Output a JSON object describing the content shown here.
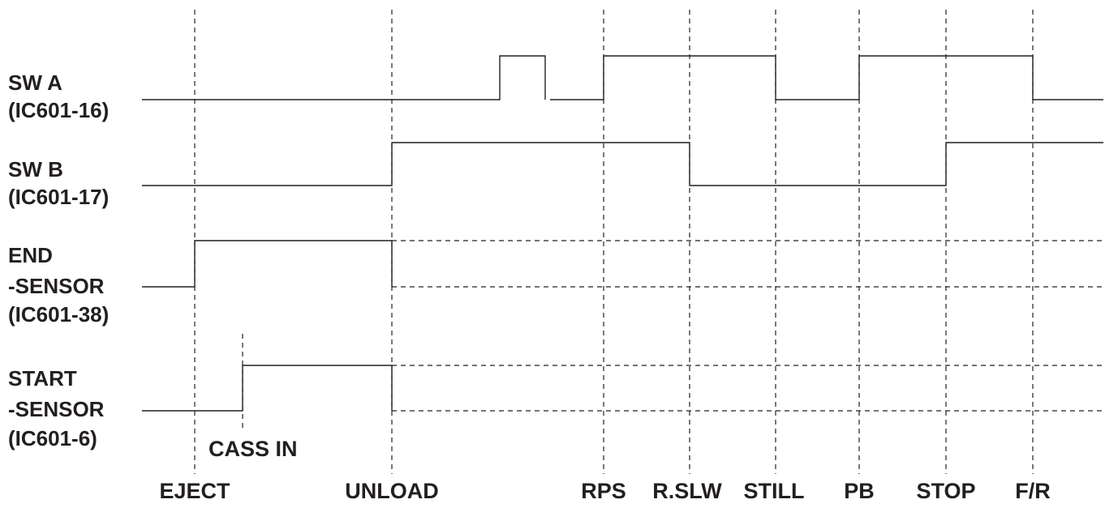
{
  "signals": [
    {
      "id": "sw-a",
      "label_lines": [
        "SW A",
        "(IC601-16)"
      ]
    },
    {
      "id": "sw-b",
      "label_lines": [
        "SW B",
        "(IC601-17)"
      ]
    },
    {
      "id": "end-sensor",
      "label_lines": [
        "END",
        "-SENSOR",
        "(IC601-38)"
      ]
    },
    {
      "id": "start-sensor",
      "label_lines": [
        "START",
        "-SENSOR",
        "(IC601-6)"
      ]
    }
  ],
  "modes": [
    "EJECT",
    "UNLOAD",
    "RPS",
    "R.SLW",
    "STILL",
    "PB",
    "STOP",
    "F/R"
  ],
  "annotations": {
    "cass_in": "CASS IN"
  },
  "colors": {
    "ink": "#231f20",
    "background": "#ffffff"
  }
}
